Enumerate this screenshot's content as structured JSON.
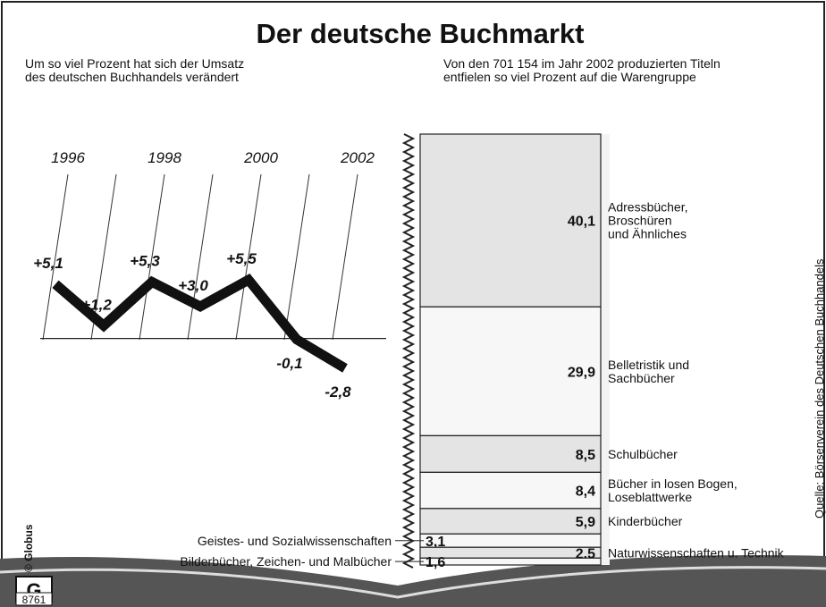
{
  "title": "Der deutsche Buchmarkt",
  "source": "Quelle: Börsenverein des Deutschen Buchhandels",
  "credit": "© Globus",
  "code": "8761",
  "chart_data": [
    {
      "type": "line",
      "subtitle": [
        "Um so viel Prozent hat sich der Umsatz",
        "des deutschen Buchhandels verändert"
      ],
      "categories": [
        "1996",
        null,
        "1998",
        null,
        "2000",
        null,
        "2002"
      ],
      "values": [
        5.1,
        1.2,
        5.3,
        3.0,
        5.5,
        -0.1,
        -2.8
      ],
      "value_labels": [
        "+5,1",
        "+1,2",
        "+5,3",
        "+3,0",
        "+5,5",
        "-0,1",
        "-2,8"
      ],
      "color": "#111111"
    },
    {
      "type": "stacked-column",
      "subtitle": [
        "Von den 701 154 im Jahr 2002 produzierten Titeln",
        "entfielen so viel Prozent auf die Warengruppe"
      ],
      "categories": [
        [
          "Adressbücher,",
          "Broschüren",
          "und Ähnliches"
        ],
        [
          "Belletristik und",
          "Sachbücher"
        ],
        [
          "Schulbücher"
        ],
        [
          "Bücher in losen Bogen,",
          "Loseblattwerke"
        ],
        [
          "Kinderbücher"
        ],
        [
          "Geistes- und Sozialwissenschaften"
        ],
        [
          "Naturwissenschaften u. Technik"
        ],
        [
          "Bilderbücher, Zeichen- und Malbücher"
        ]
      ],
      "values": [
        40.1,
        29.9,
        8.5,
        8.4,
        5.9,
        3.1,
        2.5,
        1.6
      ],
      "value_labels": [
        "40,1",
        "29,9",
        "8,5",
        "8,4",
        "5,9",
        "3,1",
        "2,5",
        "1,6"
      ],
      "color": "#e4e4e4"
    }
  ]
}
